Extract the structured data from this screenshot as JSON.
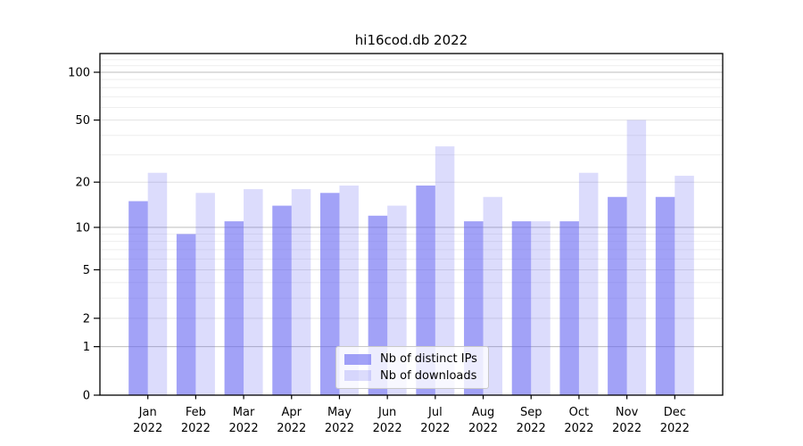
{
  "chart_data": {
    "type": "bar",
    "title": "hi16cod.db 2022",
    "categories": [
      "Jan",
      "Feb",
      "Mar",
      "Apr",
      "May",
      "Jun",
      "Jul",
      "Aug",
      "Sep",
      "Oct",
      "Nov",
      "Dec"
    ],
    "year_label": "2022",
    "series": [
      {
        "name": "Nb of distinct IPs",
        "values": [
          15,
          9,
          11,
          14,
          17,
          12,
          19,
          11,
          11,
          11,
          16,
          16
        ],
        "color": "rgba(100,100,242,0.60)"
      },
      {
        "name": "Nb of downloads",
        "values": [
          23,
          17,
          18,
          18,
          19,
          14,
          34,
          16,
          11,
          23,
          50,
          22
        ],
        "color": "rgba(100,100,242,0.225)"
      }
    ],
    "yscale": "log1p",
    "yticks": [
      0,
      1,
      2,
      5,
      10,
      20,
      50,
      100
    ],
    "ylim": [
      0,
      131
    ],
    "grid": {
      "major_values": [
        1,
        10,
        100
      ],
      "mid_values": [
        2,
        5,
        20,
        50
      ],
      "minor_values": [
        3,
        4,
        6,
        7,
        8,
        9,
        30,
        40,
        60,
        70,
        80,
        90,
        110,
        120,
        130
      ],
      "major_color": "#bdbdbd",
      "mid_color": "#e2e2e2",
      "minor_color": "#eeeeee"
    },
    "legend": {
      "position": "lower center",
      "items": [
        "Nb of distinct IPs",
        "Nb of downloads"
      ]
    }
  },
  "colors": {
    "background": "#ffffff",
    "axis": "#000000",
    "text": "#000000",
    "legend_border": "#c9c9c9",
    "legend_bg": "rgba(255,255,255,0.8)"
  }
}
